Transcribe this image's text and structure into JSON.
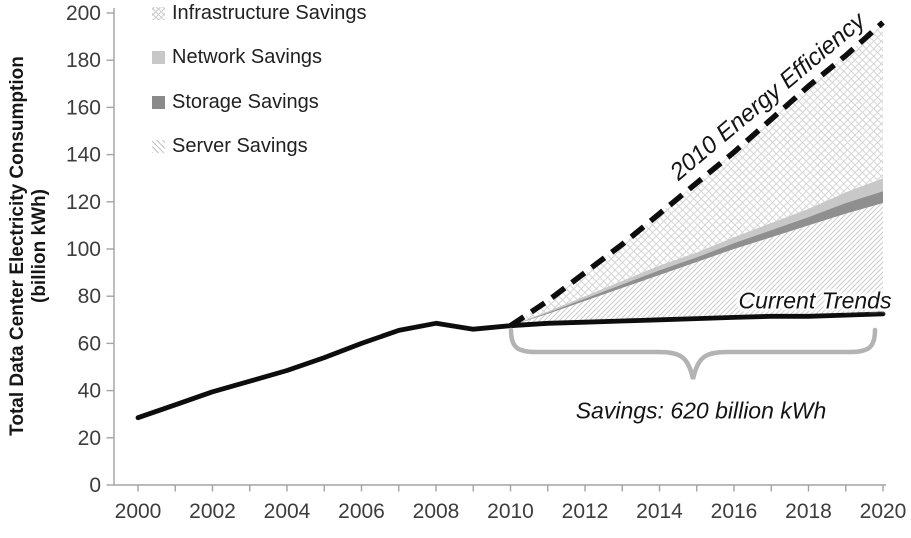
{
  "y_axis": {
    "title_line1": "Total Data Center Electricity Consumption",
    "title_line2": "(billion kWh)",
    "tick_values": [
      0,
      20,
      40,
      60,
      80,
      100,
      120,
      140,
      160,
      180,
      200
    ]
  },
  "x_axis": {
    "tick_years": [
      2000,
      2001,
      2002,
      2003,
      2004,
      2005,
      2006,
      2007,
      2008,
      2009,
      2010,
      2011,
      2012,
      2013,
      2014,
      2015,
      2016,
      2017,
      2018,
      2019,
      2020
    ],
    "label_years": [
      2000,
      2002,
      2004,
      2006,
      2008,
      2010,
      2012,
      2014,
      2016,
      2018,
      2020
    ]
  },
  "legend": {
    "items": [
      {
        "label": "Infrastructure Savings",
        "pattern": "diamond-crosshatch"
      },
      {
        "label": "Network Savings",
        "pattern": "solid-light-gray"
      },
      {
        "label": "Storage Savings",
        "pattern": "solid-dark-gray"
      },
      {
        "label": "Server Savings",
        "pattern": "diagonal-hatch"
      }
    ]
  },
  "annotations": {
    "efficiency_label": "2010 Energy Efficiency",
    "current_trends_label": "Current Trends",
    "savings_label": "Savings: 620 billion kWh"
  },
  "colors": {
    "line_black": "#0d0d0d",
    "axis_gray": "#a3a3a3",
    "tick_label_gray": "#3d3d3d",
    "network_fill": "#c8c8c8",
    "storage_fill": "#8f8f8f",
    "crosshatch_stroke": "#d6d6d6",
    "hatch_stroke": "#cbcbcb",
    "brace_gray": "#b3b3b3"
  },
  "chart_data": {
    "type": "area",
    "title": "",
    "xlabel": "",
    "ylabel": "Total Data Center Electricity Consumption (billion kWh)",
    "xlim": [
      2000,
      2020
    ],
    "ylim": [
      0,
      200
    ],
    "grid": false,
    "legend_position": "upper-left",
    "x_years": [
      2000,
      2001,
      2002,
      2003,
      2004,
      2005,
      2006,
      2007,
      2008,
      2009,
      2010,
      2011,
      2012,
      2013,
      2014,
      2015,
      2016,
      2017,
      2018,
      2019,
      2020
    ],
    "projection_years": [
      2010,
      2011,
      2012,
      2013,
      2014,
      2015,
      2016,
      2017,
      2018,
      2019,
      2020
    ],
    "series": [
      {
        "name": "Current Trends",
        "style": "solid-black-line",
        "x_start": 2000,
        "values": [
          28.5,
          34,
          39.5,
          44,
          48.5,
          54,
          60,
          65.5,
          68.5,
          66,
          67.5,
          68.5,
          69,
          69.5,
          70,
          70.5,
          71,
          71.5,
          71.5,
          72,
          72.5
        ]
      },
      {
        "name": "2010 Energy Efficiency",
        "style": "dashed-black-line",
        "x_start": 2010,
        "values": [
          67.5,
          78,
          90,
          102,
          115,
          128,
          141,
          155,
          169,
          182,
          196
        ]
      }
    ],
    "stacked_boundaries": {
      "server_top": [
        67.5,
        72.5,
        78,
        83.5,
        89,
        94.5,
        100,
        105,
        110,
        115,
        119.5
      ],
      "storage_top": [
        67.5,
        73,
        79,
        85,
        91,
        96.5,
        102.5,
        108,
        113.5,
        119.5,
        124.5
      ],
      "network_top": [
        67.5,
        73.5,
        80,
        86.5,
        93,
        98.5,
        105,
        111,
        117,
        124,
        130
      ]
    },
    "areas": [
      {
        "name": "Server Savings",
        "fill": "diagonal-hatch",
        "between": [
          "Current Trends",
          "server_top"
        ]
      },
      {
        "name": "Storage Savings",
        "fill": "storage_fill",
        "between": [
          "server_top",
          "storage_top"
        ]
      },
      {
        "name": "Network Savings",
        "fill": "network_fill",
        "between": [
          "storage_top",
          "network_top"
        ]
      },
      {
        "name": "Infrastructure Savings",
        "fill": "diamond-crosshatch",
        "between": [
          "network_top",
          "2010 Energy Efficiency"
        ]
      }
    ],
    "savings_annotation_value": "Savings: 620 billion kWh"
  }
}
